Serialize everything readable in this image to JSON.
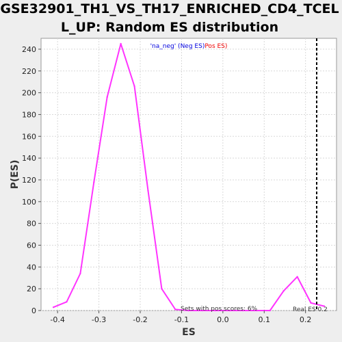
{
  "chart_data": {
    "type": "line",
    "title_line1": "GSE32901_TH1_VS_TH17_ENRICHED_CD4_TCEL",
    "title_line2": "L_UP: Random ES distribution",
    "xlabel": "ES",
    "ylabel": "P(ES)",
    "xlim": [
      -0.44,
      0.275
    ],
    "ylim": [
      0,
      250
    ],
    "xticks": [
      -0.4,
      -0.3,
      -0.2,
      -0.1,
      0.0,
      0.1,
      0.2
    ],
    "xtick_labels": [
      "-0.4",
      "-0.3",
      "-0.2",
      "-0.1",
      "0.0",
      "0.1",
      "0.2"
    ],
    "yticks": [
      0,
      20,
      40,
      60,
      80,
      100,
      120,
      140,
      160,
      180,
      200,
      220,
      240
    ],
    "grid": true,
    "series": [
      {
        "name": "ES distribution",
        "color": "#ff33ff",
        "x": [
          -0.41,
          -0.378,
          -0.345,
          -0.312,
          -0.28,
          -0.247,
          -0.214,
          -0.181,
          -0.148,
          -0.115,
          -0.083,
          -0.05,
          -0.017,
          0.016,
          0.048,
          0.081,
          0.114,
          0.147,
          0.18,
          0.213,
          0.245
        ],
        "y": [
          3,
          8,
          34,
          118,
          196,
          245,
          206,
          110,
          20,
          1,
          0,
          0,
          0,
          0,
          0,
          0,
          0,
          18,
          31,
          7,
          4
        ]
      }
    ],
    "real_es": 0.227,
    "real_es_color": "#000000",
    "legend": {
      "neg_label": "'na_neg' (Neg ES)",
      "neg_color": "#0000dd",
      "pos_label": "Pos ES)",
      "pos_color": "#ee0000"
    },
    "annotations": {
      "pos_scores": "Sets with pos scores: 6%",
      "real_es": "Real ES 0.2"
    }
  }
}
